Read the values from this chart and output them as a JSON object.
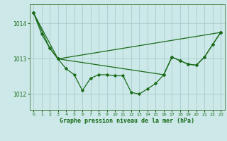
{
  "title": "Graphe pression niveau de la mer (hPa)",
  "background_color": "#cce8e8",
  "grid_color": "#aacccc",
  "line_color": "#1a6b1a",
  "marker_color": "#1a6b1a",
  "ylim": [
    1011.55,
    1014.55
  ],
  "yticks": [
    1012,
    1013,
    1014
  ],
  "xlim": [
    -0.5,
    23.5
  ],
  "xticks": [
    0,
    1,
    2,
    3,
    4,
    5,
    6,
    7,
    8,
    9,
    10,
    11,
    12,
    13,
    14,
    15,
    16,
    17,
    18,
    19,
    20,
    21,
    22,
    23
  ],
  "ytick_fontsize": 5.5,
  "xtick_fontsize": 4.5,
  "title_fontsize": 6,
  "border_color": "#5a8a5a",
  "series1_x": [
    0,
    1,
    2,
    3,
    4,
    5,
    6,
    7,
    8,
    9,
    10,
    11,
    12,
    13,
    14,
    15,
    16,
    17,
    18,
    19,
    20,
    21,
    22,
    23
  ],
  "series1_y": [
    1014.3,
    1013.7,
    1013.3,
    1013.0,
    1012.72,
    1012.55,
    1012.1,
    1012.45,
    1012.55,
    1012.55,
    1012.52,
    1012.52,
    1012.05,
    1012.0,
    1012.15,
    1012.3,
    1012.55,
    1013.05,
    1012.95,
    1012.85,
    1012.82,
    1013.05,
    1013.4,
    1013.75
  ],
  "series2_x": [
    0,
    2,
    3,
    23
  ],
  "series2_y": [
    1014.3,
    1013.3,
    1013.0,
    1013.75
  ],
  "series3_x": [
    0,
    3,
    16,
    17,
    18,
    19,
    20,
    21,
    22,
    23
  ],
  "series3_y": [
    1014.3,
    1013.0,
    1012.55,
    1013.05,
    1012.95,
    1012.85,
    1012.82,
    1013.05,
    1013.4,
    1013.75
  ]
}
